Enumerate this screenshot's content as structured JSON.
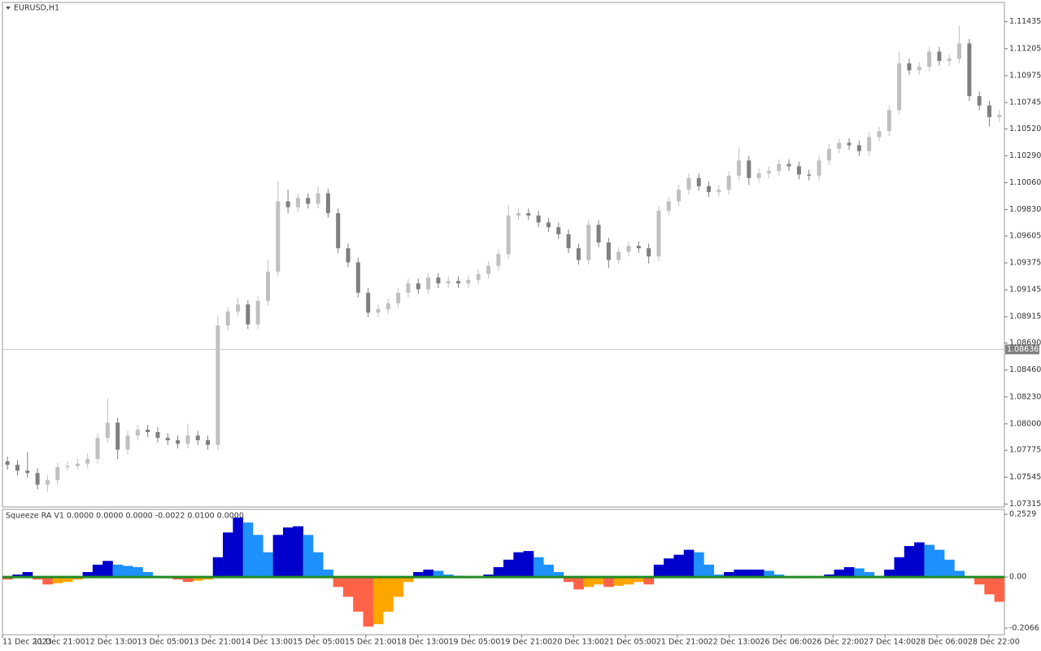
{
  "chart_data": [
    {
      "type": "candlestick",
      "title": "EURUSD,H1",
      "ylim": [
        1.0729,
        1.116
      ],
      "yticks": [
        1.11435,
        {
          "value": 1.11205,
          "label": "1.11205"
        },
        1.10975,
        1.10745,
        {
          "value": 1.1052,
          "label": "1.10520"
        },
        {
          "value": 1.1029,
          "label": "1.10290"
        },
        {
          "value": 1.1006,
          "label": "1.10060"
        },
        {
          "value": 1.0983,
          "label": "1.09830"
        },
        1.09605,
        1.09375,
        1.09145,
        1.08915,
        {
          "value": 1.0869,
          "label": "1.08690"
        },
        {
          "value": 1.0846,
          "label": "1.08460"
        },
        {
          "value": 1.0823,
          "label": "1.08230"
        },
        {
          "value": 1.08,
          "label": "1.08000"
        },
        1.07775,
        1.07545,
        1.07315
      ],
      "current_price": 1.08636,
      "up_color": "#c0c0c0",
      "down_color": "#7f7f7f",
      "ohlc": [
        [
          1.0768,
          1.0772,
          1.0761,
          1.0765
        ],
        [
          1.0765,
          1.0769,
          1.0756,
          1.076
        ],
        [
          1.076,
          1.0776,
          1.0754,
          1.0758
        ],
        [
          1.0758,
          1.0762,
          1.0744,
          1.0748
        ],
        [
          1.0748,
          1.0756,
          1.0742,
          1.0752
        ],
        [
          1.0752,
          1.0767,
          1.0748,
          1.0763
        ],
        [
          1.0763,
          1.0768,
          1.076,
          1.0764
        ],
        [
          1.0764,
          1.077,
          1.0761,
          1.0766
        ],
        [
          1.0766,
          1.0775,
          1.0762,
          1.077
        ],
        [
          1.077,
          1.0792,
          1.0766,
          1.0788
        ],
        [
          1.0788,
          1.0822,
          1.0784,
          1.0801
        ],
        [
          1.0801,
          1.0805,
          1.077,
          1.0778
        ],
        [
          1.0778,
          1.0794,
          1.0774,
          1.079
        ],
        [
          1.079,
          1.0799,
          1.0786,
          1.0795
        ],
        [
          1.0795,
          1.0799,
          1.0789,
          1.0793
        ],
        [
          1.0793,
          1.0797,
          1.0784,
          1.0788
        ],
        [
          1.0788,
          1.0792,
          1.0782,
          1.0786
        ],
        [
          1.0786,
          1.079,
          1.0779,
          1.0783
        ],
        [
          1.0783,
          1.08,
          1.0779,
          1.079
        ],
        [
          1.079,
          1.0794,
          1.0782,
          1.0786
        ],
        [
          1.0786,
          1.079,
          1.0778,
          1.0782
        ],
        [
          1.0782,
          1.0892,
          1.0778,
          1.0884
        ],
        [
          1.0884,
          1.09,
          1.088,
          1.0896
        ],
        [
          1.0896,
          1.0908,
          1.0892,
          1.0902
        ],
        [
          1.0902,
          1.0906,
          1.0881,
          1.0885
        ],
        [
          1.0885,
          1.0909,
          1.0881,
          1.0905
        ],
        [
          1.0905,
          1.094,
          1.0901,
          1.093
        ],
        [
          1.093,
          1.1007,
          1.0926,
          1.099
        ],
        [
          1.099,
          1.1,
          1.098,
          1.0985
        ],
        [
          1.0985,
          1.0997,
          1.0981,
          1.0993
        ],
        [
          1.0993,
          1.0997,
          1.0984,
          1.0988
        ],
        [
          1.0988,
          1.1003,
          1.0984,
          1.0997
        ],
        [
          1.0997,
          1.1001,
          1.0976,
          1.098
        ],
        [
          1.098,
          1.0984,
          1.0946,
          1.095
        ],
        [
          1.095,
          1.0954,
          1.0934,
          1.0938
        ],
        [
          1.0938,
          1.0942,
          1.0908,
          1.0912
        ],
        [
          1.0912,
          1.0916,
          1.0891,
          1.0895
        ],
        [
          1.0895,
          1.0902,
          1.0891,
          1.0898
        ],
        [
          1.0898,
          1.0907,
          1.0894,
          1.0903
        ],
        [
          1.0903,
          1.0916,
          1.0899,
          1.0912
        ],
        [
          1.0912,
          1.0924,
          1.0908,
          1.092
        ],
        [
          1.092,
          1.0924,
          1.0911,
          1.0915
        ],
        [
          1.0915,
          1.0929,
          1.0911,
          1.0925
        ],
        [
          1.0925,
          1.0929,
          1.0916,
          1.092
        ],
        [
          1.092,
          1.0926,
          1.0916,
          1.0922
        ],
        [
          1.0922,
          1.0926,
          1.0916,
          1.092
        ],
        [
          1.092,
          1.0927,
          1.0916,
          1.0923
        ],
        [
          1.0923,
          1.0932,
          1.0919,
          1.0928
        ],
        [
          1.0928,
          1.0939,
          1.0924,
          1.0935
        ],
        [
          1.0935,
          1.0949,
          1.0931,
          1.0945
        ],
        [
          1.0945,
          1.0987,
          1.0941,
          1.0978
        ],
        [
          1.0978,
          1.0984,
          1.0974,
          1.098
        ],
        [
          1.098,
          1.0984,
          1.0974,
          1.0978
        ],
        [
          1.0978,
          1.0982,
          1.0968,
          1.0972
        ],
        [
          1.0972,
          1.0976,
          1.0964,
          1.0968
        ],
        [
          1.0968,
          1.0972,
          1.0958,
          1.0962
        ],
        [
          1.0962,
          1.0966,
          1.0946,
          1.095
        ],
        [
          1.095,
          1.0954,
          1.0936,
          1.094
        ],
        [
          1.094,
          1.0974,
          1.0936,
          1.097
        ],
        [
          1.097,
          1.0974,
          1.0951,
          1.0955
        ],
        [
          1.0955,
          1.0959,
          1.0933,
          1.094
        ],
        [
          1.094,
          1.0951,
          1.0936,
          1.0947
        ],
        [
          1.0947,
          1.0956,
          1.0943,
          1.0952
        ],
        [
          1.0952,
          1.0956,
          1.0946,
          1.095
        ],
        [
          1.095,
          1.0954,
          1.0937,
          1.0943
        ],
        [
          1.0943,
          1.0986,
          1.0939,
          1.0982
        ],
        [
          1.0982,
          1.0994,
          1.0978,
          1.099
        ],
        [
          1.099,
          1.1004,
          1.0986,
          1.1
        ],
        [
          1.1,
          1.1014,
          1.0996,
          1.101
        ],
        [
          1.101,
          1.1014,
          1.0999,
          1.1003
        ],
        [
          1.1003,
          1.1007,
          1.0994,
          1.0998
        ],
        [
          1.0998,
          1.1004,
          1.0994,
          1.1
        ],
        [
          1.1,
          1.1016,
          1.0996,
          1.1012
        ],
        [
          1.1012,
          1.1036,
          1.1008,
          1.1025
        ],
        [
          1.1025,
          1.1029,
          1.1004,
          1.101
        ],
        [
          1.101,
          1.1018,
          1.1006,
          1.1014
        ],
        [
          1.1014,
          1.102,
          1.101,
          1.1016
        ],
        [
          1.1016,
          1.1026,
          1.1012,
          1.1022
        ],
        [
          1.1022,
          1.1026,
          1.1016,
          1.102
        ],
        [
          1.102,
          1.1024,
          1.1009,
          1.1013
        ],
        [
          1.1013,
          1.1017,
          1.1008,
          1.1012
        ],
        [
          1.1012,
          1.1029,
          1.1008,
          1.1025
        ],
        [
          1.1025,
          1.1039,
          1.1021,
          1.1035
        ],
        [
          1.1035,
          1.1044,
          1.1031,
          1.104
        ],
        [
          1.104,
          1.1044,
          1.1034,
          1.1038
        ],
        [
          1.1038,
          1.1042,
          1.1029,
          1.1033
        ],
        [
          1.1033,
          1.1049,
          1.1029,
          1.1045
        ],
        [
          1.1045,
          1.1054,
          1.1041,
          1.105
        ],
        [
          1.105,
          1.1072,
          1.1046,
          1.1068
        ],
        [
          1.1068,
          1.1118,
          1.1064,
          1.1108
        ],
        [
          1.1108,
          1.1112,
          1.1098,
          1.1102
        ],
        [
          1.1102,
          1.1109,
          1.1098,
          1.1105
        ],
        [
          1.1105,
          1.1122,
          1.1101,
          1.1118
        ],
        [
          1.1118,
          1.1122,
          1.1106,
          1.111
        ],
        [
          1.111,
          1.1116,
          1.1106,
          1.1112
        ],
        [
          1.1112,
          1.114,
          1.1108,
          1.1125
        ],
        [
          1.1125,
          1.1129,
          1.1076,
          1.108
        ],
        [
          1.108,
          1.1084,
          1.1068,
          1.1072
        ],
        [
          1.1072,
          1.1076,
          1.1054,
          1.1062
        ],
        [
          1.1062,
          1.1068,
          1.1058,
          1.1064
        ]
      ]
    },
    {
      "type": "bar",
      "title": "Squeeze RA  V1 0.0000 0.0000 0.0000 -0.0022 0.0100 0.0000",
      "ylim": [
        -0.233,
        0.273
      ],
      "yticks": [
        0.2529,
        {
          "value": 0,
          "label": "0.00"
        },
        -0.2066
      ],
      "palette": [
        "#0000cd",
        "#1e90ff",
        "#ff6347",
        "#ffa500"
      ],
      "zero_line_color": "#228b22",
      "values": [
        -0.01,
        0.01,
        0.02,
        -0.01,
        -0.03,
        -0.025,
        -0.02,
        -0.01,
        0.02,
        0.05,
        0.065,
        0.05,
        0.045,
        0.04,
        0.02,
        0.005,
        -0.005,
        -0.01,
        -0.02,
        -0.015,
        -0.01,
        0.08,
        0.18,
        0.24,
        0.22,
        0.17,
        0.1,
        0.17,
        0.2,
        0.205,
        0.17,
        0.1,
        0.03,
        -0.04,
        -0.08,
        -0.14,
        -0.2,
        -0.19,
        -0.14,
        -0.08,
        -0.02,
        0.02,
        0.03,
        0.025,
        0.01,
        0.005,
        -0.005,
        0.003,
        0.01,
        0.04,
        0.07,
        0.1,
        0.105,
        0.08,
        0.05,
        0.02,
        -0.02,
        -0.05,
        -0.04,
        -0.03,
        -0.04,
        -0.035,
        -0.03,
        -0.02,
        -0.03,
        0.05,
        0.075,
        0.09,
        0.11,
        0.1,
        0.05,
        0.01,
        0.02,
        0.03,
        0.03,
        0.03,
        0.025,
        0.01,
        0.003,
        -0.005,
        -0.005,
        0.002,
        0.01,
        0.03,
        0.04,
        0.035,
        0.02,
        0.005,
        0.03,
        0.08,
        0.125,
        0.14,
        0.13,
        0.11,
        0.07,
        0.025,
        0.004,
        -0.03,
        -0.07,
        -0.1
      ],
      "xtick_labels": [
        "11 Dec 2023",
        "11 Dec 21:00",
        "12 Dec 13:00",
        "13 Dec 05:00",
        "13 Dec 21:00",
        "14 Dec 13:00",
        "15 Dec 05:00",
        "15 Dec 21:00",
        "18 Dec 13:00",
        "19 Dec 05:00",
        "19 Dec 21:00",
        "20 Dec 13:00",
        "21 Dec 05:00",
        "21 Dec 21:00",
        "22 Dec 13:00",
        "26 Dec 06:00",
        "26 Dec 22:00",
        "27 Dec 14:00",
        "28 Dec 06:00",
        "28 Dec 22:00"
      ]
    }
  ]
}
